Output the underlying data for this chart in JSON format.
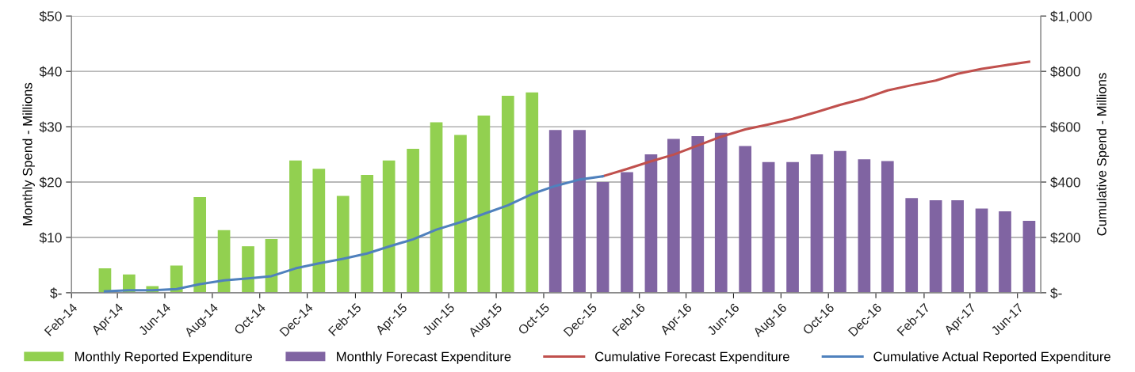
{
  "chart_data": {
    "type": "bar",
    "xlabel": null,
    "ylabel": "Monthly Spend - Millions",
    "y2label": "Cumulative Spend - Millions",
    "series": [
      {
        "name": "Monthly Reported Expenditure",
        "color": "#92d050",
        "x": [
          "2014-03-16",
          "2014-04-16",
          "2014-05-16",
          "2014-06-16",
          "2014-07-16",
          "2014-08-16",
          "2014-09-16",
          "2014-10-16",
          "2014-11-16",
          "2014-12-16",
          "2015-01-16",
          "2015-02-16",
          "2015-03-16",
          "2015-04-16",
          "2015-05-16",
          "2015-06-16",
          "2015-07-16",
          "2015-08-16",
          "2015-09-16"
        ],
        "values": [
          4.4,
          3.3,
          1.2,
          4.9,
          17.3,
          11.3,
          8.4,
          9.7,
          23.9,
          22.4,
          17.5,
          21.3,
          23.9,
          26.0,
          30.8,
          28.5,
          32.0,
          35.6,
          36.2
        ]
      },
      {
        "name": "Monthly Forecast Expenditure",
        "color": "#8064a2",
        "x": [
          "2015-10-16",
          "2015-11-16",
          "2015-12-16",
          "2016-01-16",
          "2016-02-16",
          "2016-03-16",
          "2016-04-16",
          "2016-05-16",
          "2016-06-16",
          "2016-07-16",
          "2016-08-16",
          "2016-09-16",
          "2016-10-16",
          "2016-11-16",
          "2016-12-16",
          "2017-01-16",
          "2017-02-16",
          "2017-03-16",
          "2017-04-16",
          "2017-05-16",
          "2017-06-16"
        ],
        "values": [
          29.4,
          29.4,
          20.0,
          21.8,
          25.0,
          27.8,
          28.3,
          28.9,
          26.5,
          23.6,
          23.6,
          25.0,
          25.6,
          24.1,
          23.8,
          17.1,
          16.7,
          16.7,
          15.2,
          14.7,
          13.0
        ]
      },
      {
        "name": "Cumulative Forecast Expenditure",
        "type": "line",
        "axis": "y2",
        "color": "#c0504d",
        "x": [
          "2015-12-16",
          "2016-01-16",
          "2016-02-16",
          "2016-03-16",
          "2016-04-16",
          "2016-05-16",
          "2016-06-16",
          "2016-07-16",
          "2016-08-16",
          "2016-09-16",
          "2016-10-16",
          "2016-11-16",
          "2016-12-16",
          "2017-01-16",
          "2017-02-16",
          "2017-03-16",
          "2017-04-16",
          "2017-05-16",
          "2017-06-16"
        ],
        "values": [
          421,
          447,
          475,
          499,
          532,
          564,
          590,
          608,
          628,
          653,
          679,
          702,
          731,
          750,
          767,
          791,
          809,
          822,
          835
        ]
      },
      {
        "name": "Cumulative Actual Reported Expenditure",
        "type": "line",
        "axis": "y2",
        "color": "#4f81bd",
        "x": [
          "2014-03-16",
          "2014-04-16",
          "2014-05-16",
          "2014-06-16",
          "2014-07-16",
          "2014-08-16",
          "2014-09-16",
          "2014-10-16",
          "2014-11-16",
          "2014-12-16",
          "2015-01-16",
          "2015-02-16",
          "2015-03-16",
          "2015-04-16",
          "2015-05-16",
          "2015-06-16",
          "2015-07-16",
          "2015-08-16",
          "2015-09-16",
          "2015-10-16",
          "2015-11-16",
          "2015-12-16"
        ],
        "values": [
          5,
          9,
          9,
          13,
          31,
          45,
          52,
          60,
          88,
          106,
          123,
          142,
          167,
          193,
          228,
          255,
          285,
          316,
          357,
          386,
          409,
          421
        ]
      }
    ],
    "xlim": [
      "2014-02-01",
      "2017-07-01"
    ],
    "xticks": [
      {
        "value": "2014-02-01",
        "label": "Feb-14"
      },
      {
        "value": "2014-04-01",
        "label": "Apr-14"
      },
      {
        "value": "2014-06-01",
        "label": "Jun-14"
      },
      {
        "value": "2014-08-01",
        "label": "Aug-14"
      },
      {
        "value": "2014-10-01",
        "label": "Oct-14"
      },
      {
        "value": "2014-12-01",
        "label": "Dec-14"
      },
      {
        "value": "2015-02-01",
        "label": "Feb-15"
      },
      {
        "value": "2015-04-01",
        "label": "Apr-15"
      },
      {
        "value": "2015-06-01",
        "label": "Jun-15"
      },
      {
        "value": "2015-08-01",
        "label": "Aug-15"
      },
      {
        "value": "2015-10-01",
        "label": "Oct-15"
      },
      {
        "value": "2015-12-01",
        "label": "Dec-15"
      },
      {
        "value": "2016-02-01",
        "label": "Feb-16"
      },
      {
        "value": "2016-04-01",
        "label": "Apr-16"
      },
      {
        "value": "2016-06-01",
        "label": "Jun-16"
      },
      {
        "value": "2016-08-01",
        "label": "Aug-16"
      },
      {
        "value": "2016-10-01",
        "label": "Oct-16"
      },
      {
        "value": "2016-12-01",
        "label": "Dec-16"
      },
      {
        "value": "2017-02-01",
        "label": "Feb-17"
      },
      {
        "value": "2017-04-01",
        "label": "Apr-17"
      },
      {
        "value": "2017-06-01",
        "label": "Jun-17"
      }
    ],
    "ylim": [
      0,
      50
    ],
    "yticks": [
      {
        "value": 0,
        "label": "$-"
      },
      {
        "value": 10,
        "label": "$10"
      },
      {
        "value": 20,
        "label": "$20"
      },
      {
        "value": 30,
        "label": "$30"
      },
      {
        "value": 40,
        "label": "$40"
      },
      {
        "value": 50,
        "label": "$50"
      }
    ],
    "y2lim": [
      0,
      1000
    ],
    "y2ticks": [
      {
        "value": 0,
        "label": "$-"
      },
      {
        "value": 200,
        "label": "$200"
      },
      {
        "value": 400,
        "label": "$400"
      },
      {
        "value": 600,
        "label": "$600"
      },
      {
        "value": 800,
        "label": "$800"
      },
      {
        "value": 1000,
        "label": "$1,000"
      }
    ],
    "grid": "y",
    "legend": "bottom",
    "marker": "none",
    "line_style": "solid"
  }
}
